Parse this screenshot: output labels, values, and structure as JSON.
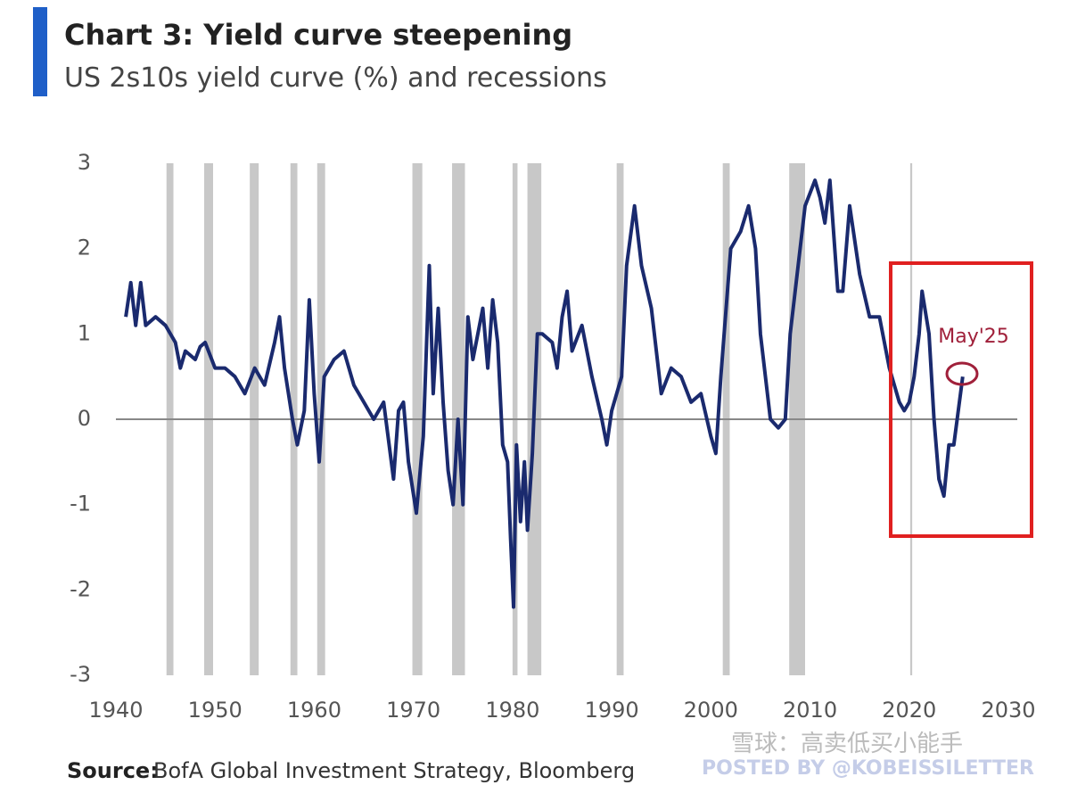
{
  "chart_data": {
    "type": "line",
    "title": "Chart 3: Yield curve steepening",
    "subtitle": "US 2s10s yield curve (%) and recessions",
    "source_label": "Source:",
    "source": "BofA Global Investment Strategy, Bloomberg",
    "watermark": "POSTED BY @KOBEISSILETTER",
    "watermark2": "雪球：高卖低买小能手",
    "annotation": "May'25",
    "color": "#1a2a6e",
    "recession_color": "#c8c8c8",
    "highlight_color": "#e02020",
    "xlim": [
      1940,
      2030
    ],
    "ylim": [
      -3,
      3
    ],
    "xticks": [
      1940,
      1950,
      1960,
      1970,
      1980,
      1990,
      2000,
      2010,
      2020,
      2030
    ],
    "yticks": [
      -3,
      -2,
      -1,
      0,
      1,
      2,
      3
    ],
    "recessions": [
      {
        "start": 1945.1,
        "end": 1945.8
      },
      {
        "start": 1948.9,
        "end": 1949.8
      },
      {
        "start": 1953.5,
        "end": 1954.4
      },
      {
        "start": 1957.6,
        "end": 1958.3
      },
      {
        "start": 1960.3,
        "end": 1961.1
      },
      {
        "start": 1969.9,
        "end": 1970.9
      },
      {
        "start": 1973.9,
        "end": 1975.2
      },
      {
        "start": 1980.0,
        "end": 1980.5
      },
      {
        "start": 1981.5,
        "end": 1982.9
      },
      {
        "start": 1990.5,
        "end": 1991.2
      },
      {
        "start": 2001.2,
        "end": 2001.9
      },
      {
        "start": 2007.9,
        "end": 2009.5
      },
      {
        "start": 2020.1,
        "end": 2020.3
      }
    ],
    "x": [
      1941.0,
      1941.5,
      1942.0,
      1942.5,
      1943.0,
      1944.0,
      1945.0,
      1946.0,
      1946.5,
      1947.0,
      1948.0,
      1948.5,
      1949.0,
      1950.0,
      1951.0,
      1952.0,
      1953.0,
      1954.0,
      1955.0,
      1956.0,
      1956.5,
      1957.0,
      1957.8,
      1958.3,
      1959.0,
      1959.5,
      1960.0,
      1960.5,
      1961.0,
      1962.0,
      1963.0,
      1964.0,
      1965.0,
      1966.0,
      1967.0,
      1968.0,
      1968.5,
      1969.0,
      1969.5,
      1970.3,
      1971.0,
      1971.6,
      1972.0,
      1972.5,
      1973.0,
      1973.5,
      1974.0,
      1974.5,
      1975.0,
      1975.5,
      1976.0,
      1977.0,
      1977.5,
      1978.0,
      1978.5,
      1979.0,
      1979.5,
      1979.8,
      1980.1,
      1980.4,
      1980.8,
      1981.2,
      1981.5,
      1982.0,
      1982.5,
      1983.0,
      1984.0,
      1984.5,
      1985.0,
      1985.5,
      1986.0,
      1987.0,
      1988.0,
      1989.0,
      1989.5,
      1990.0,
      1991.0,
      1991.5,
      1992.3,
      1993.0,
      1994.0,
      1995.0,
      1996.0,
      1997.0,
      1998.0,
      1999.0,
      2000.0,
      2000.5,
      2001.0,
      2002.0,
      2003.0,
      2003.8,
      2004.5,
      2005.0,
      2006.0,
      2006.8,
      2007.5,
      2008.0,
      2008.8,
      2009.5,
      2010.5,
      2011.0,
      2011.5,
      2012.0,
      2012.8,
      2013.3,
      2014.0,
      2015.0,
      2016.0,
      2017.0,
      2018.0,
      2019.0,
      2019.5,
      2020.0,
      2020.5,
      2021.0,
      2021.3,
      2022.0,
      2022.5,
      2023.0,
      2023.5,
      2024.0,
      2024.5,
      2025.4
    ],
    "values": [
      1.2,
      1.6,
      1.1,
      1.6,
      1.1,
      1.2,
      1.1,
      0.9,
      0.6,
      0.8,
      0.7,
      0.85,
      0.9,
      0.6,
      0.6,
      0.5,
      0.3,
      0.6,
      0.4,
      0.9,
      1.2,
      0.6,
      0.0,
      -0.3,
      0.1,
      1.4,
      0.3,
      -0.5,
      0.5,
      0.7,
      0.8,
      0.4,
      0.2,
      0.0,
      0.2,
      -0.7,
      0.1,
      0.2,
      -0.5,
      -1.1,
      -0.2,
      1.8,
      0.3,
      1.3,
      0.2,
      -0.6,
      -1.0,
      0.0,
      -1.0,
      1.2,
      0.7,
      1.3,
      0.6,
      1.4,
      0.9,
      -0.3,
      -0.5,
      -1.4,
      -2.2,
      -0.3,
      -1.2,
      -0.5,
      -1.3,
      -0.4,
      1.0,
      1.0,
      0.9,
      0.6,
      1.2,
      1.5,
      0.8,
      1.1,
      0.5,
      0.0,
      -0.3,
      0.1,
      0.5,
      1.8,
      2.5,
      1.8,
      1.3,
      0.3,
      0.6,
      0.5,
      0.2,
      0.3,
      -0.2,
      -0.4,
      0.5,
      2.0,
      2.2,
      2.5,
      2.0,
      1.0,
      0.0,
      -0.1,
      0.0,
      1.0,
      1.8,
      2.5,
      2.8,
      2.6,
      2.3,
      2.8,
      1.5,
      1.5,
      2.5,
      1.7,
      1.2,
      1.2,
      0.6,
      0.2,
      0.1,
      0.2,
      0.5,
      1.0,
      1.5,
      1.0,
      0.0,
      -0.7,
      -0.9,
      -0.3,
      -0.3,
      0.5
    ]
  }
}
